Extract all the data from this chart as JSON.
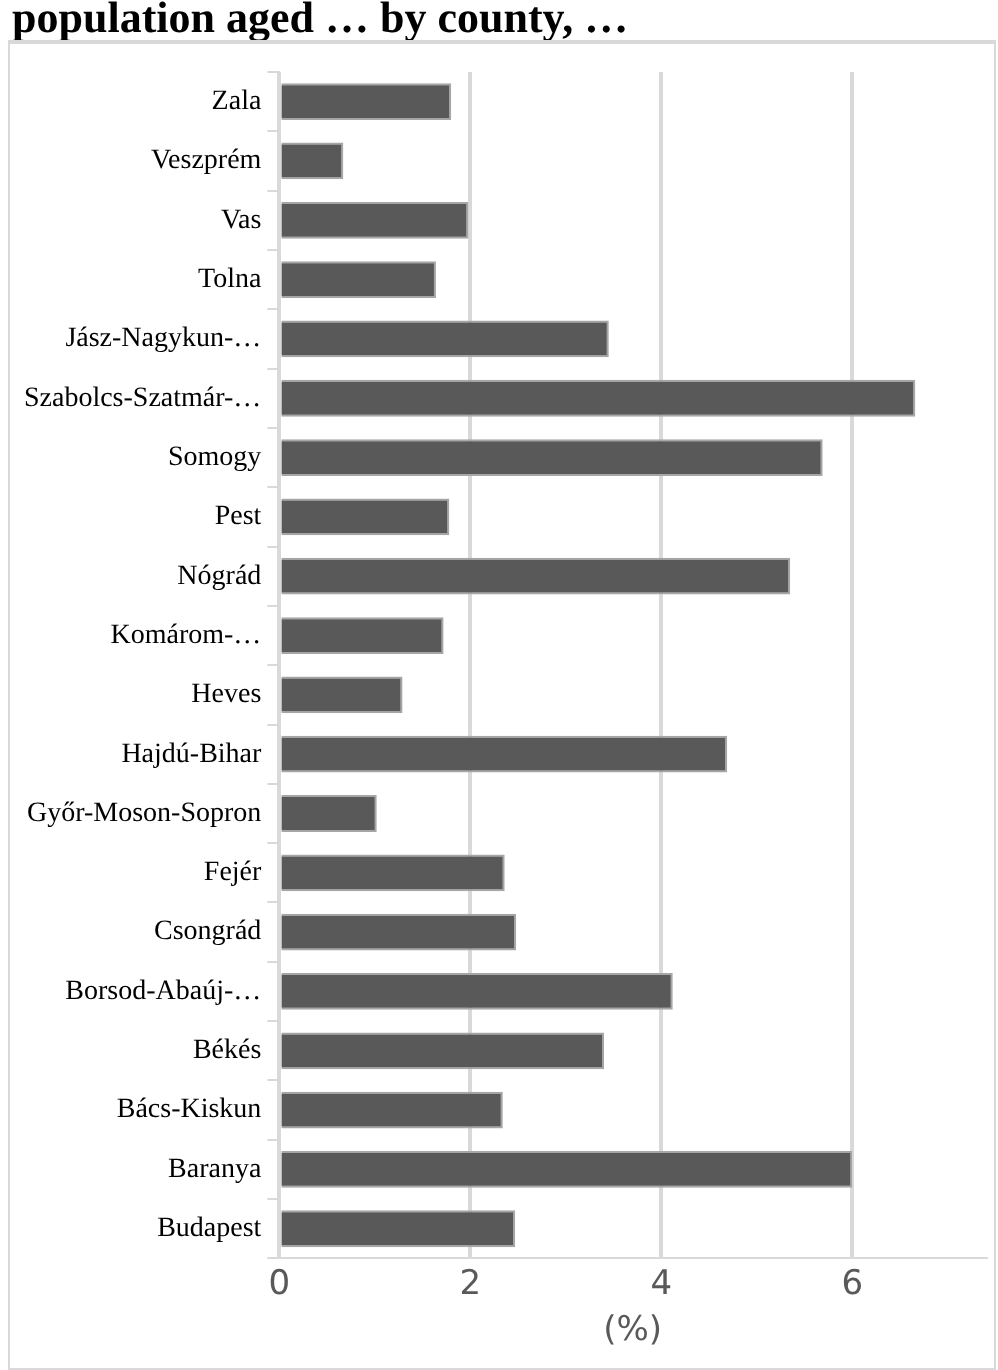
{
  "chart_data": {
    "type": "bar",
    "orientation": "horizontal",
    "title": "population aged … by county, …",
    "xlabel": "(%)",
    "categories": [
      "Zala",
      "Veszprém",
      "Vas",
      "Tolna",
      "Jász-Nagykun-…",
      "Szabolcs-Szatmár-…",
      "Somogy",
      "Pest",
      "Nógrád",
      "Komárom-…",
      "Heves",
      "Hajdú-Bihar",
      "Győr-Moson-Sopron",
      "Fejér",
      "Csongrád",
      "Borsod-Abaúj-…",
      "Békés",
      "Bács-Kiskun",
      "Baranya",
      "Budapest"
    ],
    "values": [
      1.8,
      0.67,
      1.98,
      1.64,
      3.45,
      6.66,
      5.69,
      1.78,
      5.35,
      1.72,
      1.29,
      4.69,
      1.02,
      2.36,
      2.48,
      4.12,
      3.4,
      2.34,
      6.0,
      2.47
    ],
    "color": "#595959",
    "xlim": [
      0,
      7.4
    ],
    "xticks": [
      0,
      2,
      4,
      6
    ],
    "grid": "x",
    "legend": false
  }
}
